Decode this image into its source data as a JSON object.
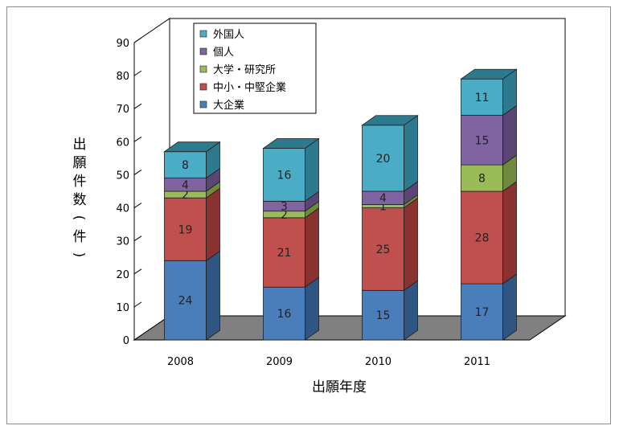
{
  "chart_data": {
    "type": "bar",
    "stacked": true,
    "three_d": true,
    "categories": [
      "2008",
      "2009",
      "2010",
      "2011"
    ],
    "series": [
      {
        "name": "大企業",
        "values": [
          24,
          16,
          15,
          17
        ],
        "color": "#4a7ebb",
        "side": "#2f5582",
        "top": "#6f9bd1"
      },
      {
        "name": "中小・中堅企業",
        "values": [
          19,
          21,
          25,
          28
        ],
        "color": "#c0504d",
        "side": "#8a3230",
        "top": "#d67673"
      },
      {
        "name": "大学・研究所",
        "values": [
          2,
          2,
          1,
          8
        ],
        "color": "#9bbb59",
        "side": "#6f8a3c",
        "top": "#b7d17f"
      },
      {
        "name": "個人",
        "values": [
          4,
          3,
          4,
          15
        ],
        "color": "#8064a2",
        "side": "#5a4574",
        "top": "#9f86bd"
      },
      {
        "name": "外国人",
        "values": [
          8,
          16,
          20,
          11
        ],
        "color": "#4bacc6",
        "side": "#2d7a8f",
        "top": "#7cc6d9"
      }
    ],
    "xlabel": "出願年度",
    "ylabel": "出願件数(件)",
    "ylim": [
      0,
      90
    ],
    "yticks": [
      0,
      10,
      20,
      30,
      40,
      50,
      60,
      70,
      80,
      90
    ],
    "grid": false,
    "legend_position": "top-left"
  }
}
